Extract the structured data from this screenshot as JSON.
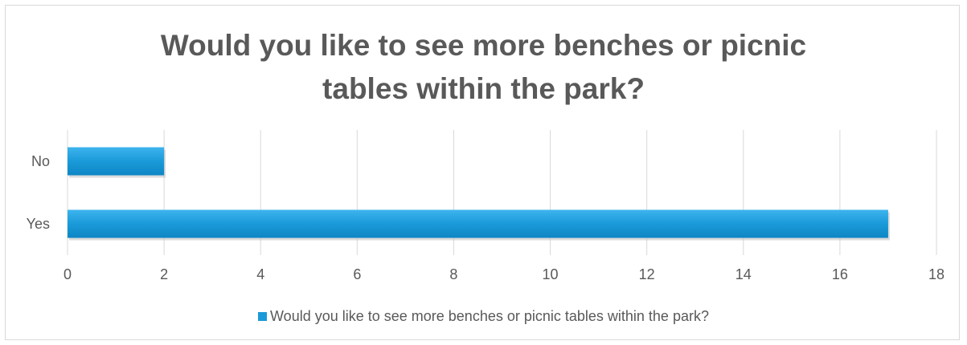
{
  "chart_data": {
    "type": "bar",
    "orientation": "horizontal",
    "title": "Would you like to see more benches or picnic tables within the park?",
    "categories": [
      "No",
      "Yes"
    ],
    "series": [
      {
        "name": "Would you like to see more benches or picnic tables within the park?",
        "values": [
          2,
          17
        ],
        "color": "#1a9ad9"
      }
    ],
    "xlim": [
      0,
      18
    ],
    "xticks": [
      0,
      2,
      4,
      6,
      8,
      10,
      12,
      14,
      16,
      18
    ],
    "grid": true,
    "legend": "bottom"
  }
}
